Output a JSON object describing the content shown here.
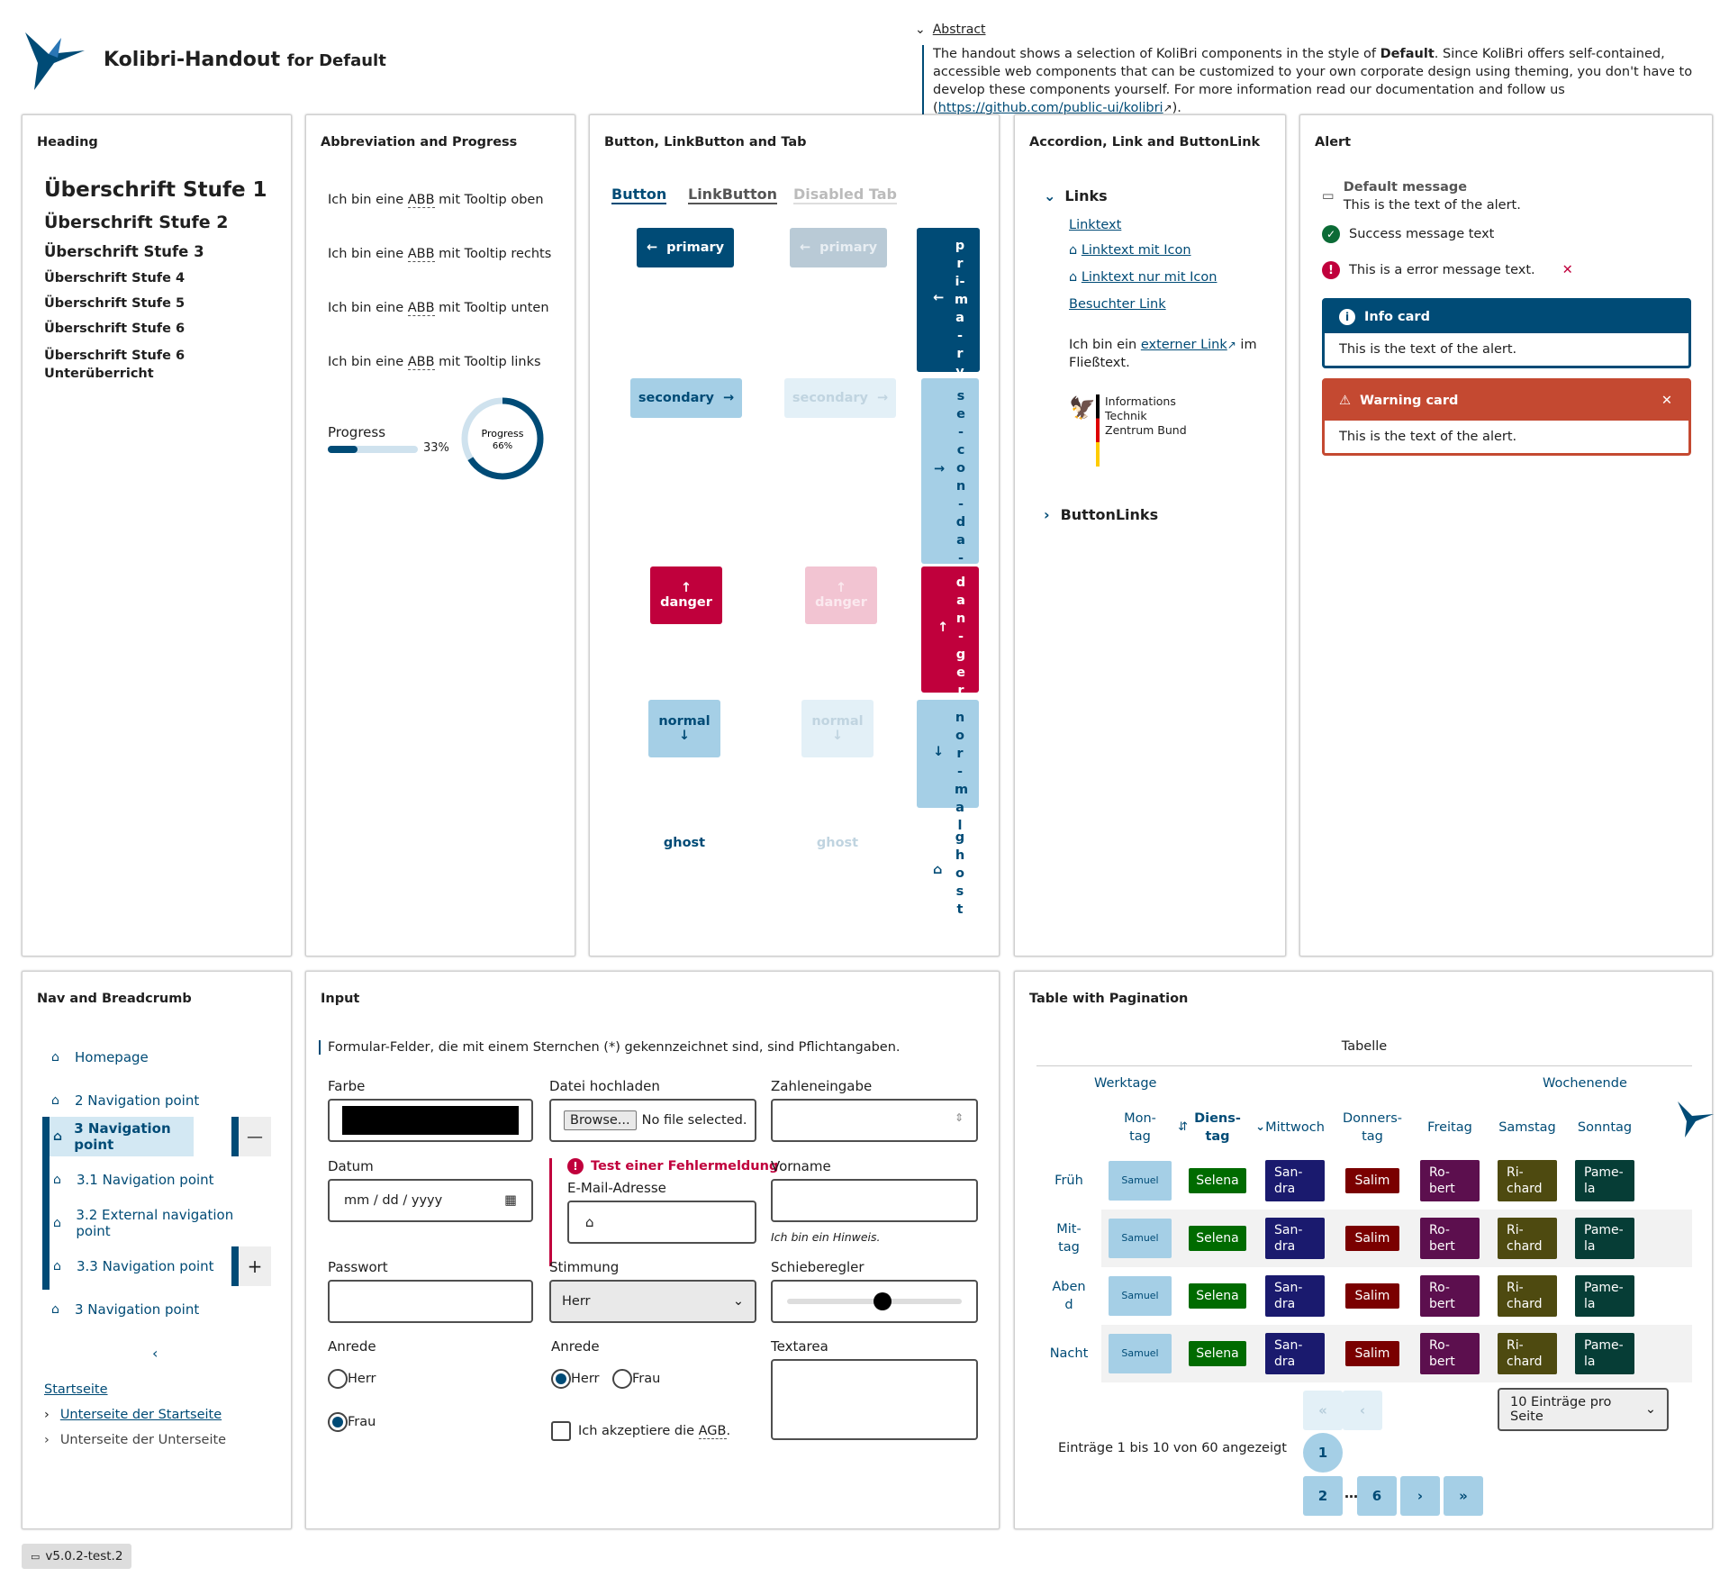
{
  "header": {
    "title": "Kolibri-Handout",
    "title_suffix": "for Default",
    "abstract_label": "Abstract",
    "abstract_text_1": "The handout shows a selection of KoliBri components in the style of ",
    "abstract_bold": "Default",
    "abstract_text_2": ". Since KoliBri offers self-contained, accessible web components that can be customized to your own corporate design using theming, you don't have to develop these components yourself. For more information read our documentation and follow us (",
    "abstract_link": "https://github.com/public-ui/kolibri",
    "abstract_text_3": ")."
  },
  "heading_card": {
    "title": "Heading",
    "h1": "Überschrift Stufe 1",
    "h2": "Überschrift Stufe 2",
    "h3": "Überschrift Stufe 3",
    "h4": "Überschrift Stufe 4",
    "h5": "Überschrift Stufe 5",
    "h6": "Überschrift Stufe 6",
    "h6b": "Überschrift Stufe 6",
    "h6b_sub": "Unterüberricht"
  },
  "abbr_card": {
    "title": "Abbreviation and Progress",
    "pre": "Ich bin eine ",
    "abbr": "ABB",
    "row1": " mit Tooltip oben",
    "row2": " mit Tooltip rechts",
    "row3": " mit Tooltip unten",
    "row4": " mit Tooltip links",
    "progress_label": "Progress",
    "progress_bar_value": 33,
    "progress_bar_text": "33%",
    "progress_circle_value": 66,
    "progress_circle_label": "Progress",
    "progress_circle_text": "66%"
  },
  "button_card": {
    "title": "Button, LinkButton and Tab",
    "tabs": [
      "Button",
      "LinkButton",
      "Disabled Tab"
    ],
    "primary": "primary",
    "secondary": "secondary",
    "danger": "danger",
    "normal": "normal",
    "ghost": "ghost",
    "v_primary": "pri-ma-ry",
    "v_secondary": "se-con-da-ry",
    "v_danger": "dan-ger",
    "v_normal": "nor-mal",
    "v_ghost": "ghost"
  },
  "accordion_card": {
    "title": "Accordion, Link and ButtonLink",
    "acc1": "Links",
    "link1": "Linktext",
    "link2": "Linktext mit Icon",
    "link3": "Linktext nur mit Icon",
    "link4": "Besuchter Link",
    "flow_pre": "Ich bin ein ",
    "flow_link": "externer Link",
    "flow_post": " im Fließtext.",
    "logo_line1": "Informations",
    "logo_line2": "Technik",
    "logo_line3": "Zentrum Bund",
    "acc2": "ButtonLinks"
  },
  "alert_card": {
    "title": "Alert",
    "default_title": "Default message",
    "default_text": "This is the text of the alert.",
    "success_text": "Success message text",
    "error_text": "This is a error message text.",
    "info_title": "Info card",
    "info_text": "This is the text of the alert.",
    "warning_title": "Warning card",
    "warning_text": "This is the text of the alert."
  },
  "nav_card": {
    "title": "Nav and Breadcrumb",
    "items": [
      "Homepage",
      "2 Navigation point",
      "3 Navigation point",
      "3.1 Navigation point",
      "3.2 External navigation point",
      "3.3 Navigation point",
      "3 Navigation point"
    ],
    "breadcrumb": [
      "Startseite",
      "Unterseite der Startseite",
      "Unterseite der Unterseite"
    ]
  },
  "input_card": {
    "title": "Input",
    "note": "Formular-Felder, die mit einem Sternchen (*) gekennzeichnet sind, sind Pflichtangaben.",
    "farbe": "Farbe",
    "datei": "Datei hochladen",
    "browse": "Browse...",
    "no_file": "No file selected.",
    "zahl": "Zahleneingabe",
    "datum": "Datum",
    "datum_placeholder": "mm / dd / yyyy",
    "error_msg": "Test einer Fehlermeldung",
    "email": "E-Mail-Adresse",
    "vorname": "Vorname",
    "hint": "Ich bin ein Hinweis.",
    "passwort": "Passwort",
    "stimmung": "Stimmung",
    "stimmung_value": "Herr",
    "slider": "Schieberegler",
    "slider_value": 0.55,
    "anrede1": "Anrede",
    "anrede2": "Anrede",
    "herr": "Herr",
    "frau": "Frau",
    "agb_pre": "Ich akzeptiere die ",
    "agb": "AGB",
    "agb_post": ".",
    "textarea": "Textarea"
  },
  "table_card": {
    "title": "Table with Pagination",
    "caption": "Tabelle",
    "group1": "Werktage",
    "group2": "Wochenende",
    "cols": [
      "Mon-\ntag",
      "Diens-\ntag",
      "Mittwoch",
      "Donners-\ntag",
      "Freitag",
      "Samstag",
      "Sonntag"
    ],
    "rows": [
      "Früh",
      "Mit-\ntag",
      "Aben\nd",
      "Nacht"
    ],
    "names": [
      "Samuel",
      "Selena",
      "San-\ndra",
      "Salim",
      "Ro-\nbert",
      "Ri-\nchard",
      "Pame-\nla"
    ],
    "colors": {
      "samuel": "#a5cfe6",
      "selena": "#006b00",
      "sandra": "#1a1a6e",
      "salim": "#7a0000",
      "robert": "#5c0f4e",
      "richard": "#4e4a10",
      "pamela": "#063d36"
    },
    "page_size": "10 Einträge pro Seite",
    "summary": "Einträge 1 bis 10 von 60 angezeigt",
    "pages": [
      "1",
      "2",
      "6"
    ]
  },
  "version": "v5.0.2-test.2"
}
